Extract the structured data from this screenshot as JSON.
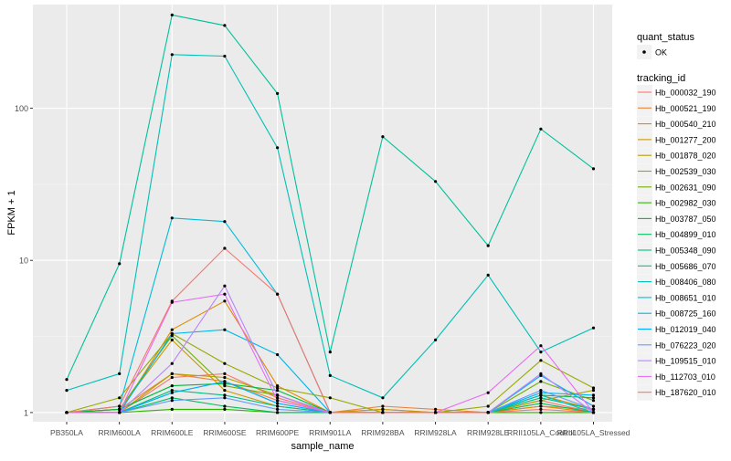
{
  "chart_data": {
    "type": "line",
    "xlabel": "sample_name",
    "ylabel": "FPKM + 1",
    "y_scale": "log10",
    "ylim": [
      0.87,
      480
    ],
    "y_ticks": [
      {
        "value": 1,
        "label": "1"
      },
      {
        "value": 10,
        "label": "10"
      },
      {
        "value": 100,
        "label": "100"
      }
    ],
    "categories": [
      "PB350LA",
      "RRIM600LA",
      "RRIM600LE",
      "RRIM600SE",
      "RRIM600PE",
      "RRIM901LA",
      "RRIM928BA",
      "RRIM928LA",
      "RRIM928LE",
      "RRII105LA_Control",
      "RRII105LA_Stressed"
    ],
    "legend_quant": {
      "title": "quant_status",
      "items": [
        "OK"
      ]
    },
    "legend_title": "tracking_id",
    "series": [
      {
        "name": "Hb_000032_190",
        "color": "#F8766D",
        "values": [
          1.0,
          1.0,
          1.7,
          1.8,
          1.25,
          1.0,
          1.05,
          1.0,
          1.0,
          1.2,
          1.0
        ]
      },
      {
        "name": "Hb_000521_190",
        "color": "#EC823C",
        "values": [
          1.0,
          1.05,
          1.8,
          1.6,
          1.2,
          1.0,
          1.1,
          1.05,
          1.0,
          1.1,
          1.05
        ]
      },
      {
        "name": "Hb_000540_210",
        "color": "#DD8D00",
        "values": [
          1.0,
          1.0,
          3.5,
          5.4,
          1.5,
          1.0,
          1.0,
          1.0,
          1.0,
          1.1,
          1.0
        ]
      },
      {
        "name": "Hb_001277_200",
        "color": "#CA9700",
        "values": [
          1.0,
          1.05,
          3.0,
          1.4,
          1.1,
          1.0,
          1.05,
          1.0,
          1.0,
          1.3,
          1.05
        ]
      },
      {
        "name": "Hb_001878_020",
        "color": "#B3A000",
        "values": [
          1.0,
          1.0,
          1.8,
          1.7,
          1.3,
          1.0,
          1.0,
          1.0,
          1.0,
          1.2,
          1.4
        ]
      },
      {
        "name": "Hb_002539_030",
        "color": "#97A900",
        "values": [
          1.0,
          1.25,
          3.3,
          2.1,
          1.45,
          1.25,
          1.0,
          1.0,
          1.1,
          2.2,
          1.45
        ]
      },
      {
        "name": "Hb_002631_090",
        "color": "#71B000",
        "values": [
          1.0,
          1.05,
          3.2,
          1.5,
          1.3,
          1.0,
          1.0,
          1.0,
          1.0,
          1.6,
          1.2
        ]
      },
      {
        "name": "Hb_002982_030",
        "color": "#2FB600",
        "values": [
          1.0,
          1.0,
          1.05,
          1.05,
          1.0,
          1.0,
          1.0,
          1.0,
          1.0,
          1.0,
          1.0
        ]
      },
      {
        "name": "Hb_003787_050",
        "color": "#00BA38",
        "values": [
          1.0,
          1.05,
          1.5,
          1.55,
          1.4,
          1.0,
          1.0,
          1.0,
          1.0,
          1.3,
          1.25
        ]
      },
      {
        "name": "Hb_004899_010",
        "color": "#00BD5C",
        "values": [
          1.0,
          1.0,
          1.25,
          1.1,
          1.0,
          1.0,
          1.0,
          1.0,
          1.0,
          1.15,
          1.0
        ]
      },
      {
        "name": "Hb_005348_090",
        "color": "#00BF7D",
        "values": [
          1.0,
          1.0,
          1.4,
          1.3,
          1.1,
          1.0,
          1.0,
          1.0,
          1.0,
          1.25,
          1.05
        ]
      },
      {
        "name": "Hb_005686_070",
        "color": "#00C19A",
        "values": [
          1.65,
          9.5,
          410,
          350,
          125,
          2.5,
          65,
          33,
          12.5,
          73,
          40
        ]
      },
      {
        "name": "Hb_008406_080",
        "color": "#00C0B5",
        "values": [
          1.4,
          1.8,
          225,
          220,
          55,
          1.75,
          1.25,
          3.0,
          8.0,
          2.5,
          3.6
        ]
      },
      {
        "name": "Hb_008651_010",
        "color": "#00BCD8",
        "values": [
          1.0,
          1.1,
          19.0,
          18.0,
          6.0,
          1.0,
          1.0,
          1.0,
          1.0,
          1.3,
          1.0
        ]
      },
      {
        "name": "Hb_008725_160",
        "color": "#00B6EB",
        "values": [
          1.0,
          1.0,
          3.3,
          3.5,
          2.4,
          1.0,
          1.0,
          1.0,
          1.0,
          1.35,
          1.3
        ]
      },
      {
        "name": "Hb_012019_040",
        "color": "#00ABFD",
        "values": [
          1.0,
          1.0,
          1.35,
          1.6,
          1.15,
          1.0,
          1.0,
          1.0,
          1.0,
          1.75,
          1.1
        ]
      },
      {
        "name": "Hb_076223_020",
        "color": "#619CFF",
        "values": [
          1.0,
          1.0,
          1.2,
          1.25,
          1.05,
          1.0,
          1.0,
          1.0,
          1.0,
          1.4,
          1.05
        ]
      },
      {
        "name": "Hb_109515_010",
        "color": "#B983FF",
        "values": [
          1.0,
          1.0,
          2.1,
          6.8,
          1.3,
          1.0,
          1.0,
          1.0,
          1.0,
          1.8,
          1.0
        ]
      },
      {
        "name": "Hb_112703_010",
        "color": "#E76BF3",
        "values": [
          1.0,
          1.0,
          5.3,
          6.0,
          1.2,
          1.0,
          1.0,
          1.0,
          1.35,
          2.75,
          1.0
        ]
      },
      {
        "name": "Hb_187620_010",
        "color": "#F8766D",
        "values": [
          1.0,
          1.1,
          5.4,
          12.0,
          6.0,
          1.0,
          1.0,
          1.0,
          1.0,
          1.05,
          1.0
        ]
      }
    ]
  }
}
